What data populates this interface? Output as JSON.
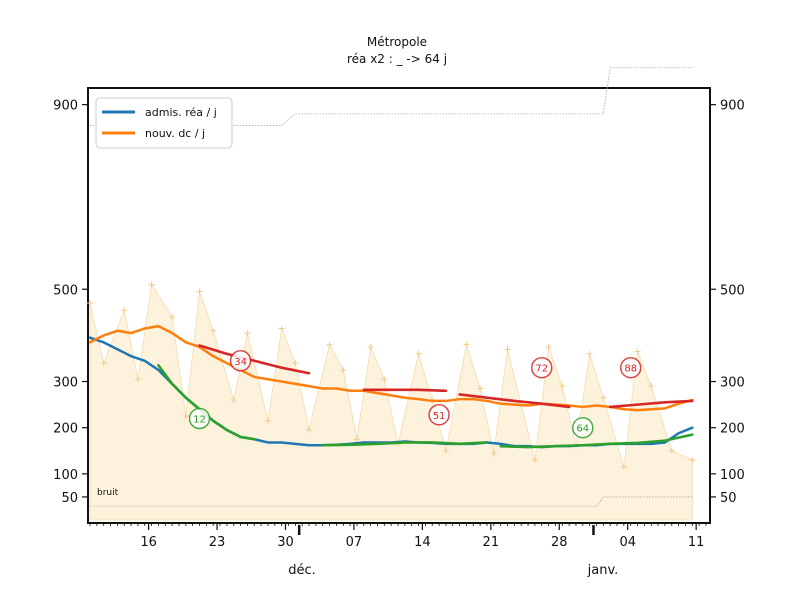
{
  "chart_data": {
    "type": "line",
    "title": "Métropole",
    "subtitle": "réa x2 : _ -> 64 j",
    "x_tick_labels": [
      "16",
      "23",
      "30",
      "07",
      "14",
      "21",
      "28",
      "04",
      "11"
    ],
    "month_labels": [
      "déc.",
      "janv."
    ],
    "y_ticks": [
      50,
      100,
      200,
      300,
      500,
      900
    ],
    "ylim": [
      0,
      960
    ],
    "xlim_days": [
      0,
      90
    ],
    "legend": [
      {
        "label": "admis. réa / j",
        "color": "#1f77b4"
      },
      {
        "label": "nouv. dc / j",
        "color": "#ff7f0e"
      }
    ],
    "noise_label": "bruit",
    "colors": {
      "blue": "#1f77b4",
      "orange": "#ff7f0e",
      "green": "#2ca02c",
      "red": "#d62728",
      "fill": "#fdf2dc"
    },
    "series": [
      {
        "name": "admis. réa / j",
        "color": "#1f77b4",
        "x": [
          0,
          2,
          4,
          6,
          8,
          10,
          12,
          14,
          16,
          18,
          20,
          22,
          24,
          26,
          28,
          30,
          32,
          34,
          36,
          38,
          40,
          42,
          44,
          46,
          48,
          50,
          52,
          54,
          56,
          58,
          60,
          62,
          64,
          66,
          68,
          70,
          72,
          74,
          76,
          78,
          80,
          82,
          84,
          86,
          88
        ],
        "y": [
          395,
          385,
          370,
          355,
          345,
          325,
          295,
          265,
          240,
          215,
          195,
          180,
          175,
          168,
          168,
          165,
          162,
          162,
          163,
          165,
          168,
          168,
          168,
          170,
          168,
          167,
          165,
          165,
          165,
          168,
          165,
          160,
          160,
          158,
          160,
          160,
          162,
          162,
          165,
          165,
          165,
          165,
          168,
          188,
          200
        ]
      },
      {
        "name": "nouv. dc / j",
        "color": "#ff7f0e",
        "x": [
          0,
          2,
          4,
          6,
          8,
          10,
          12,
          14,
          16,
          18,
          20,
          22,
          24,
          26,
          28,
          30,
          32,
          34,
          36,
          38,
          40,
          42,
          44,
          46,
          48,
          50,
          52,
          54,
          56,
          58,
          60,
          62,
          64,
          66,
          68,
          70,
          72,
          74,
          76,
          78,
          80,
          82,
          84,
          86,
          88
        ],
        "y": [
          385,
          400,
          410,
          405,
          415,
          420,
          405,
          385,
          375,
          355,
          340,
          325,
          310,
          305,
          300,
          295,
          290,
          285,
          285,
          280,
          280,
          275,
          270,
          265,
          262,
          258,
          258,
          262,
          262,
          258,
          252,
          250,
          248,
          252,
          250,
          248,
          245,
          248,
          245,
          240,
          238,
          240,
          242,
          252,
          260
        ]
      }
    ],
    "smoothed_segments": [
      {
        "color": "#2ca02c",
        "x": [
          10,
          12,
          14,
          16,
          18,
          20,
          22,
          24
        ],
        "y": [
          335,
          295,
          265,
          240,
          215,
          195,
          180,
          175
        ]
      },
      {
        "color": "#2ca02c",
        "x": [
          34,
          38,
          42,
          46,
          50,
          54,
          58
        ],
        "y": [
          162,
          163,
          165,
          168,
          168,
          165,
          168
        ]
      },
      {
        "color": "#2ca02c",
        "x": [
          60,
          64,
          68,
          72,
          76,
          80,
          84,
          88
        ],
        "y": [
          160,
          158,
          160,
          162,
          165,
          167,
          172,
          185
        ]
      },
      {
        "color": "#d62728",
        "x": [
          16,
          20,
          24,
          28,
          32
        ],
        "y": [
          378,
          360,
          345,
          330,
          318
        ]
      },
      {
        "color": "#d62728",
        "x": [
          40,
          44,
          48,
          52
        ],
        "y": [
          282,
          282,
          282,
          280
        ]
      },
      {
        "color": "#d62728",
        "x": [
          54,
          58,
          62,
          66,
          70
        ],
        "y": [
          272,
          265,
          258,
          252,
          245
        ]
      },
      {
        "color": "#d62728",
        "x": [
          76,
          80,
          84,
          88
        ],
        "y": [
          245,
          250,
          255,
          258
        ]
      }
    ],
    "daily_points": [
      {
        "x": 0,
        "y": 470
      },
      {
        "x": 2,
        "y": 340
      },
      {
        "x": 5,
        "y": 455
      },
      {
        "x": 7,
        "y": 305
      },
      {
        "x": 9,
        "y": 510
      },
      {
        "x": 12,
        "y": 440
      },
      {
        "x": 14,
        "y": 225
      },
      {
        "x": 16,
        "y": 495
      },
      {
        "x": 18,
        "y": 410
      },
      {
        "x": 21,
        "y": 260
      },
      {
        "x": 23,
        "y": 405
      },
      {
        "x": 26,
        "y": 215
      },
      {
        "x": 28,
        "y": 415
      },
      {
        "x": 30,
        "y": 340
      },
      {
        "x": 32,
        "y": 195
      },
      {
        "x": 35,
        "y": 380
      },
      {
        "x": 37,
        "y": 325
      },
      {
        "x": 39,
        "y": 175
      },
      {
        "x": 41,
        "y": 375
      },
      {
        "x": 43,
        "y": 305
      },
      {
        "x": 45,
        "y": 165
      },
      {
        "x": 48,
        "y": 360
      },
      {
        "x": 50,
        "y": 260
      },
      {
        "x": 52,
        "y": 150
      },
      {
        "x": 55,
        "y": 380
      },
      {
        "x": 57,
        "y": 285
      },
      {
        "x": 59,
        "y": 145
      },
      {
        "x": 61,
        "y": 370
      },
      {
        "x": 63,
        "y": 250
      },
      {
        "x": 65,
        "y": 130
      },
      {
        "x": 67,
        "y": 375
      },
      {
        "x": 69,
        "y": 290
      },
      {
        "x": 71,
        "y": 160
      },
      {
        "x": 73,
        "y": 360
      },
      {
        "x": 75,
        "y": 265
      },
      {
        "x": 78,
        "y": 115
      },
      {
        "x": 80,
        "y": 365
      },
      {
        "x": 82,
        "y": 290
      },
      {
        "x": 85,
        "y": 150
      },
      {
        "x": 88,
        "y": 130
      }
    ],
    "upper_dotted": {
      "x": [
        0,
        28,
        30,
        75,
        76,
        88
      ],
      "y": [
        855,
        855,
        880,
        880,
        980,
        980
      ]
    },
    "lower_dotted": {
      "x": [
        0,
        74,
        75,
        88
      ],
      "y": [
        30,
        30,
        50,
        50
      ]
    },
    "annotations": [
      {
        "label": "12",
        "x": 16,
        "y": 220,
        "color": "#2ca02c"
      },
      {
        "label": "34",
        "x": 22,
        "y": 345,
        "color": "#d62728"
      },
      {
        "label": "51",
        "x": 51,
        "y": 228,
        "color": "#d62728"
      },
      {
        "label": "72",
        "x": 66,
        "y": 330,
        "color": "#d62728"
      },
      {
        "label": "64",
        "x": 72,
        "y": 200,
        "color": "#2ca02c"
      },
      {
        "label": "88",
        "x": 79,
        "y": 330,
        "color": "#d62728"
      }
    ]
  }
}
